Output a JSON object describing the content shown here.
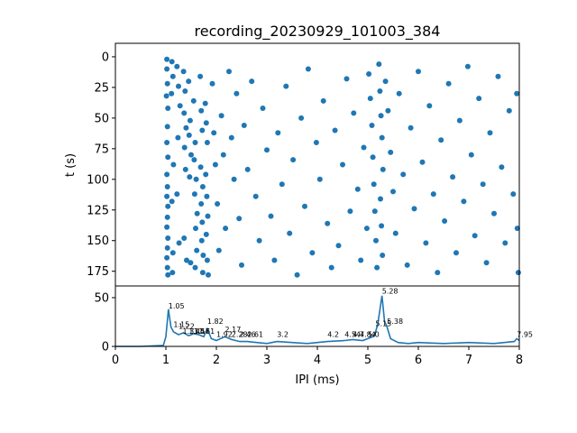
{
  "chart_data": [
    {
      "type": "scatter",
      "title": "recording_20230929_101003_384",
      "xlabel": "",
      "ylabel": "t (s)",
      "xlim": [
        0,
        8
      ],
      "ylim": [
        187,
        -11
      ],
      "y_inverted": true,
      "yticks": [
        "0",
        "25",
        "50",
        "75",
        "100",
        "125",
        "150",
        "175"
      ],
      "color": "#1f77b4",
      "points": [
        [
          1.02,
          2
        ],
        [
          1.02,
          10
        ],
        [
          1.03,
          22
        ],
        [
          1.01,
          32
        ],
        [
          1.04,
          42
        ],
        [
          1.03,
          57
        ],
        [
          1.02,
          70
        ],
        [
          1.04,
          82
        ],
        [
          1.02,
          96
        ],
        [
          1.03,
          106
        ],
        [
          1.02,
          114
        ],
        [
          1.04,
          122
        ],
        [
          1.03,
          131
        ],
        [
          1.02,
          139
        ],
        [
          1.04,
          148
        ],
        [
          1.03,
          156
        ],
        [
          1.02,
          164
        ],
        [
          1.03,
          172
        ],
        [
          1.04,
          178
        ],
        [
          1.12,
          4
        ],
        [
          1.14,
          16
        ],
        [
          1.11,
          30
        ],
        [
          1.15,
          88
        ],
        [
          1.12,
          118
        ],
        [
          1.14,
          160
        ],
        [
          1.13,
          176
        ],
        [
          1.22,
          8
        ],
        [
          1.25,
          24
        ],
        [
          1.28,
          40
        ],
        [
          1.24,
          66
        ],
        [
          1.22,
          112
        ],
        [
          1.26,
          152
        ],
        [
          1.35,
          12
        ],
        [
          1.38,
          28
        ],
        [
          1.36,
          46
        ],
        [
          1.4,
          58
        ],
        [
          1.37,
          74
        ],
        [
          1.39,
          92
        ],
        [
          1.36,
          148
        ],
        [
          1.41,
          166
        ],
        [
          1.45,
          20
        ],
        [
          1.48,
          52
        ],
        [
          1.46,
          64
        ],
        [
          1.5,
          80
        ],
        [
          1.47,
          98
        ],
        [
          1.49,
          168
        ],
        [
          1.55,
          36
        ],
        [
          1.58,
          70
        ],
        [
          1.56,
          84
        ],
        [
          1.6,
          100
        ],
        [
          1.57,
          112
        ],
        [
          1.62,
          128
        ],
        [
          1.59,
          140
        ],
        [
          1.61,
          158
        ],
        [
          1.58,
          172
        ],
        [
          1.68,
          16
        ],
        [
          1.7,
          44
        ],
        [
          1.72,
          60
        ],
        [
          1.69,
          90
        ],
        [
          1.73,
          106
        ],
        [
          1.7,
          120
        ],
        [
          1.72,
          135
        ],
        [
          1.71,
          150
        ],
        [
          1.74,
          162
        ],
        [
          1.73,
          176
        ],
        [
          1.78,
          38
        ],
        [
          1.8,
          54
        ],
        [
          1.82,
          70
        ],
        [
          1.79,
          96
        ],
        [
          1.81,
          114
        ],
        [
          1.83,
          130
        ],
        [
          1.8,
          145
        ],
        [
          1.82,
          166
        ],
        [
          1.84,
          178
        ],
        [
          1.92,
          22
        ],
        [
          1.95,
          62
        ],
        [
          1.98,
          88
        ],
        [
          2.02,
          120
        ],
        [
          2.05,
          158
        ],
        [
          2.1,
          48
        ],
        [
          2.14,
          80
        ],
        [
          2.18,
          140
        ],
        [
          2.25,
          12
        ],
        [
          2.3,
          66
        ],
        [
          2.35,
          100
        ],
        [
          2.4,
          30
        ],
        [
          2.45,
          132
        ],
        [
          2.5,
          170
        ],
        [
          2.55,
          56
        ],
        [
          2.62,
          92
        ],
        [
          2.7,
          20
        ],
        [
          2.78,
          114
        ],
        [
          2.85,
          150
        ],
        [
          2.92,
          42
        ],
        [
          3.0,
          76
        ],
        [
          3.08,
          130
        ],
        [
          3.15,
          166
        ],
        [
          3.22,
          62
        ],
        [
          3.3,
          104
        ],
        [
          3.38,
          24
        ],
        [
          3.45,
          144
        ],
        [
          3.52,
          84
        ],
        [
          3.6,
          178
        ],
        [
          3.68,
          50
        ],
        [
          3.75,
          122
        ],
        [
          3.82,
          10
        ],
        [
          3.9,
          160
        ],
        [
          3.98,
          70
        ],
        [
          4.05,
          100
        ],
        [
          4.12,
          36
        ],
        [
          4.2,
          136
        ],
        [
          4.28,
          172
        ],
        [
          4.35,
          60
        ],
        [
          4.42,
          154
        ],
        [
          4.5,
          88
        ],
        [
          4.58,
          18
        ],
        [
          4.65,
          126
        ],
        [
          4.72,
          46
        ],
        [
          4.8,
          108
        ],
        [
          4.86,
          166
        ],
        [
          4.92,
          74
        ],
        [
          4.98,
          140
        ],
        [
          5.02,
          14
        ],
        [
          5.05,
          34
        ],
        [
          5.08,
          56
        ],
        [
          5.1,
          82
        ],
        [
          5.12,
          104
        ],
        [
          5.14,
          126
        ],
        [
          5.16,
          150
        ],
        [
          5.18,
          172
        ],
        [
          5.22,
          6
        ],
        [
          5.24,
          28
        ],
        [
          5.26,
          48
        ],
        [
          5.28,
          66
        ],
        [
          5.3,
          92
        ],
        [
          5.25,
          116
        ],
        [
          5.27,
          138
        ],
        [
          5.29,
          162
        ],
        [
          5.35,
          20
        ],
        [
          5.4,
          44
        ],
        [
          5.45,
          78
        ],
        [
          5.5,
          110
        ],
        [
          5.55,
          144
        ],
        [
          5.62,
          30
        ],
        [
          5.7,
          96
        ],
        [
          5.78,
          170
        ],
        [
          5.85,
          58
        ],
        [
          5.92,
          124
        ],
        [
          6.0,
          12
        ],
        [
          6.08,
          86
        ],
        [
          6.15,
          152
        ],
        [
          6.22,
          40
        ],
        [
          6.3,
          112
        ],
        [
          6.38,
          176
        ],
        [
          6.45,
          68
        ],
        [
          6.52,
          134
        ],
        [
          6.6,
          22
        ],
        [
          6.68,
          98
        ],
        [
          6.75,
          160
        ],
        [
          6.82,
          52
        ],
        [
          6.9,
          118
        ],
        [
          6.98,
          8
        ],
        [
          7.05,
          80
        ],
        [
          7.12,
          146
        ],
        [
          7.2,
          34
        ],
        [
          7.28,
          104
        ],
        [
          7.35,
          168
        ],
        [
          7.42,
          62
        ],
        [
          7.5,
          128
        ],
        [
          7.58,
          16
        ],
        [
          7.65,
          90
        ],
        [
          7.72,
          152
        ],
        [
          7.8,
          44
        ],
        [
          7.88,
          112
        ],
        [
          7.95,
          30
        ],
        [
          7.96,
          140
        ],
        [
          7.98,
          176
        ]
      ]
    },
    {
      "type": "line",
      "xlabel": "IPI (ms)",
      "ylabel": "",
      "xlim": [
        0,
        8
      ],
      "ylim": [
        0,
        62
      ],
      "xticks": [
        "0",
        "1",
        "2",
        "3",
        "4",
        "5",
        "6",
        "7",
        "8"
      ],
      "yticks": [
        "0",
        "50"
      ],
      "color": "#1f77b4",
      "x": [
        0,
        0.5,
        0.95,
        1.0,
        1.05,
        1.1,
        1.15,
        1.25,
        1.35,
        1.45,
        1.55,
        1.65,
        1.75,
        1.82,
        1.9,
        2.0,
        2.17,
        2.3,
        2.46,
        2.61,
        2.8,
        3.0,
        3.2,
        3.5,
        3.8,
        4.2,
        4.54,
        4.7,
        4.9,
        5.0,
        5.1,
        5.15,
        5.2,
        5.28,
        5.33,
        5.38,
        5.45,
        5.6,
        5.8,
        6.0,
        6.5,
        7.0,
        7.5,
        7.9,
        7.95,
        8.0
      ],
      "y": [
        0,
        0,
        1,
        10,
        38,
        20,
        15,
        12,
        14,
        11,
        13,
        12,
        10,
        18,
        8,
        6,
        10,
        7,
        5,
        5,
        4,
        3,
        5,
        4,
        3,
        5,
        6,
        7,
        6,
        8,
        10,
        14,
        24,
        52,
        26,
        20,
        8,
        4,
        3,
        4,
        3,
        4,
        3,
        5,
        8,
        6
      ],
      "annotations": [
        {
          "x": 1.05,
          "y": 38,
          "text": "1.05"
        },
        {
          "x": 1.15,
          "y": 19,
          "text": "1.15"
        },
        {
          "x": 1.25,
          "y": 17,
          "text": "1.22"
        },
        {
          "x": 1.33,
          "y": 12,
          "text": "1.33"
        },
        {
          "x": 1.45,
          "y": 12,
          "text": "1.44"
        },
        {
          "x": 1.55,
          "y": 12,
          "text": "1.57"
        },
        {
          "x": 1.65,
          "y": 12,
          "text": "1.61"
        },
        {
          "x": 1.82,
          "y": 22,
          "text": "1.82"
        },
        {
          "x": 2.0,
          "y": 9,
          "text": "1.92"
        },
        {
          "x": 2.17,
          "y": 14,
          "text": "2.17"
        },
        {
          "x": 2.3,
          "y": 9,
          "text": "2.28"
        },
        {
          "x": 2.46,
          "y": 9,
          "text": "2.46"
        },
        {
          "x": 2.61,
          "y": 9,
          "text": "2.61"
        },
        {
          "x": 3.2,
          "y": 9,
          "text": "3.2"
        },
        {
          "x": 4.2,
          "y": 9,
          "text": "4.2"
        },
        {
          "x": 4.54,
          "y": 9,
          "text": "4.54"
        },
        {
          "x": 4.7,
          "y": 9,
          "text": "4.7"
        },
        {
          "x": 4.84,
          "y": 9,
          "text": "4.84"
        },
        {
          "x": 5.0,
          "y": 9,
          "text": "5.0"
        },
        {
          "x": 5.15,
          "y": 20,
          "text": "5.15"
        },
        {
          "x": 5.28,
          "y": 53,
          "text": "5.28"
        },
        {
          "x": 5.38,
          "y": 22,
          "text": "5.38"
        },
        {
          "x": 7.95,
          "y": 9,
          "text": "7.95"
        }
      ]
    }
  ]
}
